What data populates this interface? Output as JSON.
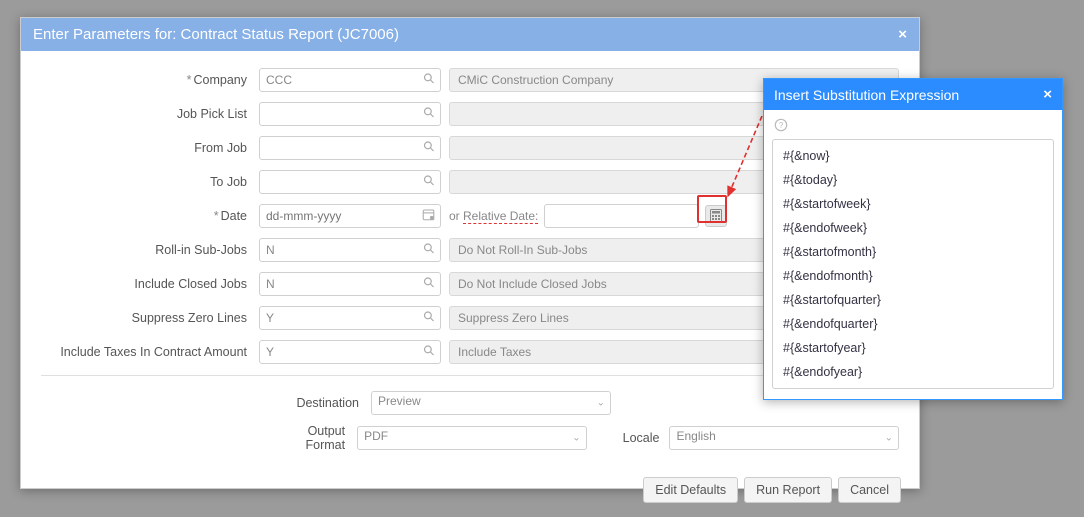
{
  "dialog": {
    "title": "Enter Parameters for: Contract Status Report (JC7006)"
  },
  "labels": {
    "company": "Company",
    "jobPickList": "Job Pick List",
    "fromJob": "From Job",
    "toJob": "To Job",
    "date": "Date",
    "rollIn": "Roll-in Sub-Jobs",
    "includeClosed": "Include Closed Jobs",
    "suppressZero": "Suppress Zero Lines",
    "includeTaxes": "Include Taxes In Contract Amount",
    "destination": "Destination",
    "outputFormat": "Output Format",
    "locale": "Locale",
    "orRelativeDate": "or Relative Date:"
  },
  "values": {
    "company": "CCC",
    "companyDesc": "CMiC Construction Company",
    "jobPickList": "",
    "fromJob": "",
    "toJob": "",
    "datePlaceholder": "dd-mmm-yyyy",
    "relativeDate": "",
    "rollIn": "N",
    "rollInDesc": "Do Not Roll-In Sub-Jobs",
    "includeClosed": "N",
    "includeClosedDesc": "Do Not Include Closed Jobs",
    "suppressZero": "Y",
    "suppressZeroDesc": "Suppress Zero Lines",
    "includeTaxes": "Y",
    "includeTaxesDesc": "Include Taxes",
    "destination": "Preview",
    "outputFormat": "PDF",
    "locale": "English"
  },
  "buttons": {
    "editDefaults": "Edit Defaults",
    "runReport": "Run Report",
    "cancel": "Cancel"
  },
  "popup": {
    "title": "Insert Substitution Expression",
    "options": [
      "#{&now}",
      "#{&today}",
      "#{&startofweek}",
      "#{&endofweek}",
      "#{&startofmonth}",
      "#{&endofmonth}",
      "#{&startofquarter}",
      "#{&endofquarter}",
      "#{&startofyear}",
      "#{&endofyear}"
    ]
  },
  "colors": {
    "mainTitlebar": "#87b0e6",
    "popupTitlebar": "#2a8cff",
    "highlight": "#e03030",
    "background": "#9b9b9b"
  }
}
